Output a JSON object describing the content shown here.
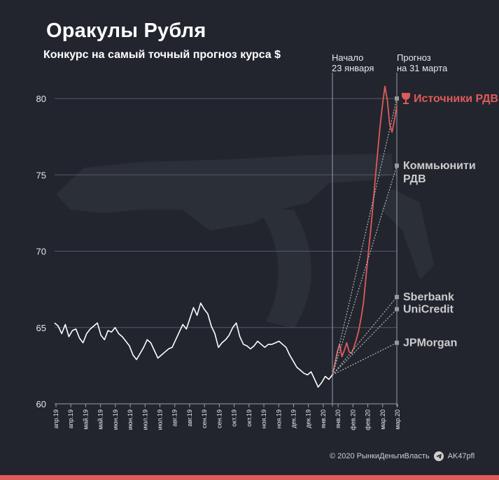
{
  "header": {
    "title": "Оракулы Рубля",
    "subtitle": "Конкурс на самый точный прогноз курса $"
  },
  "markers": {
    "start": {
      "line1": "Начало",
      "line2": "23 января"
    },
    "end": {
      "line1": "Прогноз",
      "line2": "на 31 марта"
    }
  },
  "footer": {
    "copyright": "© 2020  РынкиДеньгиВласть",
    "handle": "AK47pfl"
  },
  "colors": {
    "background": "#22252e",
    "history": "#ffffff",
    "forecast": "#e05a5a",
    "winner": "#e05a5a",
    "forecaster": "#cccccc",
    "grid": "#555964"
  },
  "chart_data": {
    "type": "line",
    "ylim": [
      60,
      82
    ],
    "yticks": [
      60,
      65,
      70,
      75,
      80
    ],
    "grid": true,
    "x_tick_labels": [
      "апр.19",
      "апр.19",
      "май.19",
      "май.19",
      "июн.19",
      "июн.19",
      "июл.19",
      "июл.19",
      "авг.19",
      "авг.19",
      "сен.19",
      "сен.19",
      "окт.19",
      "окт.19",
      "ноя.19",
      "ноя.19",
      "дек.19",
      "дек.19",
      "янв.20",
      "янв.20",
      "фев.20",
      "фев.20",
      "мар.20",
      "мар.20"
    ],
    "series": [
      {
        "values": [
          65.3,
          65.1,
          64.6,
          65.2,
          64.4,
          64.8,
          64.9,
          64.3,
          64.0,
          64.6,
          64.9,
          65.1,
          65.3,
          64.5,
          64.2,
          64.8,
          64.7,
          65.0,
          64.6,
          64.4,
          64.1,
          63.8,
          63.2,
          62.9,
          63.3,
          63.7,
          64.2,
          64.0,
          63.5,
          63.0,
          63.2,
          63.4,
          63.6,
          63.7,
          64.2,
          64.7,
          65.2,
          64.9,
          65.6,
          66.3,
          65.8,
          66.6,
          66.2,
          65.9,
          65.1,
          64.6,
          63.7,
          64.0,
          64.2,
          64.5,
          65.0,
          65.3,
          64.4,
          63.9,
          63.8,
          63.6,
          63.8,
          64.1,
          63.9,
          63.7,
          63.9,
          63.9,
          64.0,
          64.1,
          63.9,
          63.7,
          63.2,
          62.8,
          62.4,
          62.2,
          62.0,
          61.9,
          62.1,
          61.6,
          61.1,
          61.4,
          61.8,
          61.6,
          61.9
        ]
      },
      {
        "values": [
          61.9,
          62.6,
          63.4,
          63.9,
          63.1,
          63.5,
          64.0,
          63.4,
          63.3,
          63.7,
          64.2,
          64.8,
          65.6,
          66.6,
          68.2,
          69.8,
          71.3,
          73.0,
          74.8,
          76.5,
          78.2,
          79.6,
          80.8,
          79.9,
          78.3,
          77.8,
          78.6,
          79.5
        ]
      }
    ],
    "forecasts": [
      {
        "name": "Источники РДВ",
        "value": 80.0,
        "winner": true
      },
      {
        "name": "Коммьюнити РДВ",
        "value": 75.6,
        "winner": false
      },
      {
        "name": "Sberbank",
        "value": 67.0,
        "winner": false
      },
      {
        "name": "UniCredit",
        "value": 66.2,
        "winner": false
      },
      {
        "name": "JPMorgan",
        "value": 64.0,
        "winner": false
      }
    ]
  }
}
